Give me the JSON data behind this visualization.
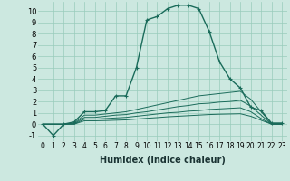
{
  "xlabel": "Humidex (Indice chaleur)",
  "bg_color": "#cce8e0",
  "grid_color": "#99ccbb",
  "line_color": "#1a6b5a",
  "xlim": [
    -0.5,
    23.5
  ],
  "ylim": [
    -1.5,
    10.8
  ],
  "yticks": [
    -1,
    0,
    1,
    2,
    3,
    4,
    5,
    6,
    7,
    8,
    9,
    10
  ],
  "xtick_labels": [
    "0",
    "1",
    "2",
    "3",
    "4",
    "5",
    "6",
    "7",
    "8",
    "9",
    "10",
    "11",
    "12",
    "13",
    "14",
    "15",
    "16",
    "17",
    "18",
    "19",
    "20",
    "21",
    "22",
    "23"
  ],
  "series": [
    {
      "x": [
        0,
        1,
        2,
        3,
        4,
        5,
        6,
        7,
        8,
        9,
        10,
        11,
        12,
        13,
        14,
        15,
        16,
        17,
        18,
        19,
        20,
        21,
        22,
        23
      ],
      "y": [
        0,
        -1,
        0,
        0.2,
        1.1,
        1.1,
        1.2,
        2.5,
        2.5,
        5.0,
        9.2,
        9.5,
        10.2,
        10.5,
        10.5,
        10.2,
        8.2,
        5.5,
        4.0,
        3.2,
        1.5,
        1.2,
        0.1,
        0.1
      ],
      "marker": true,
      "lw": 1.0
    },
    {
      "x": [
        0,
        1,
        2,
        3,
        4,
        5,
        6,
        7,
        8,
        9,
        10,
        11,
        12,
        13,
        14,
        15,
        16,
        17,
        18,
        19,
        20,
        21,
        22,
        23
      ],
      "y": [
        0,
        0,
        0,
        0.1,
        0.8,
        0.8,
        0.9,
        1.0,
        1.1,
        1.3,
        1.5,
        1.7,
        1.9,
        2.1,
        2.3,
        2.5,
        2.6,
        2.7,
        2.8,
        2.9,
        2.2,
        1.1,
        0.05,
        0.05
      ],
      "marker": false,
      "lw": 0.7
    },
    {
      "x": [
        0,
        1,
        2,
        3,
        4,
        5,
        6,
        7,
        8,
        9,
        10,
        11,
        12,
        13,
        14,
        15,
        16,
        17,
        18,
        19,
        20,
        21,
        22,
        23
      ],
      "y": [
        0,
        0,
        0,
        0.05,
        0.6,
        0.6,
        0.7,
        0.8,
        0.85,
        1.0,
        1.1,
        1.25,
        1.4,
        1.55,
        1.65,
        1.8,
        1.85,
        1.95,
        2.0,
        2.1,
        1.6,
        0.8,
        0.0,
        0.0
      ],
      "marker": false,
      "lw": 0.7
    },
    {
      "x": [
        0,
        1,
        2,
        3,
        4,
        5,
        6,
        7,
        8,
        9,
        10,
        11,
        12,
        13,
        14,
        15,
        16,
        17,
        18,
        19,
        20,
        21,
        22,
        23
      ],
      "y": [
        0,
        0,
        0,
        0.0,
        0.45,
        0.45,
        0.5,
        0.55,
        0.6,
        0.7,
        0.8,
        0.9,
        1.0,
        1.05,
        1.15,
        1.2,
        1.3,
        1.35,
        1.4,
        1.45,
        1.1,
        0.5,
        0.0,
        0.0
      ],
      "marker": false,
      "lw": 0.7
    },
    {
      "x": [
        0,
        1,
        2,
        3,
        4,
        5,
        6,
        7,
        8,
        9,
        10,
        11,
        12,
        13,
        14,
        15,
        16,
        17,
        18,
        19,
        20,
        21,
        22,
        23
      ],
      "y": [
        0,
        0,
        0,
        0.0,
        0.3,
        0.3,
        0.32,
        0.35,
        0.38,
        0.45,
        0.52,
        0.58,
        0.65,
        0.7,
        0.75,
        0.8,
        0.85,
        0.88,
        0.9,
        0.92,
        0.7,
        0.35,
        0.0,
        0.0
      ],
      "marker": false,
      "lw": 0.7
    }
  ],
  "xlabel_fontsize": 7,
  "tick_fontsize": 5.5,
  "ytick_fontsize": 6
}
